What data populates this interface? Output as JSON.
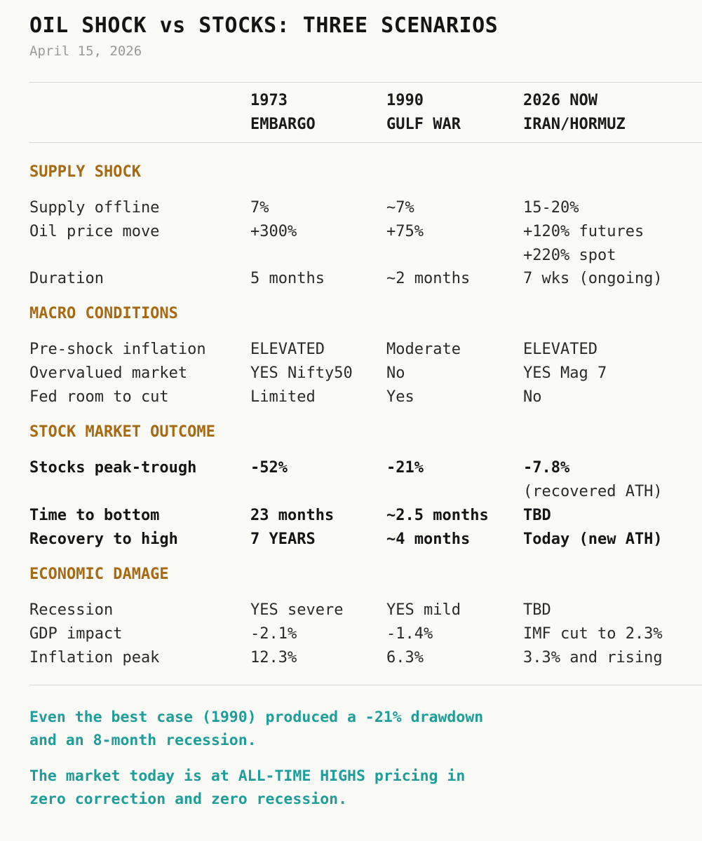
{
  "title": "OIL SHOCK vs STOCKS: THREE SCENARIOS",
  "date": "April 15, 2026",
  "columns": [
    {
      "line1": "1973",
      "line2": "EMBARGO"
    },
    {
      "line1": "1990",
      "line2": "GULF WAR"
    },
    {
      "line1": "2026 NOW",
      "line2": "IRAN/HORMUZ"
    }
  ],
  "sections": {
    "supply": {
      "heading": "SUPPLY SHOCK",
      "rows": [
        {
          "label": "Supply offline",
          "v1": "7%",
          "v2": "~7%",
          "v3": "15-20%"
        },
        {
          "label": "Oil price move",
          "v1": "+300%",
          "v2": "+75%",
          "v3": "+120% futures",
          "v3b": "+220% spot"
        },
        {
          "label": "Duration",
          "v1": "5 months",
          "v2": "~2 months",
          "v3": "7 wks (ongoing)"
        }
      ]
    },
    "macro": {
      "heading": "MACRO CONDITIONS",
      "rows": [
        {
          "label": "Pre-shock inflation",
          "v1": "ELEVATED",
          "v2": "Moderate",
          "v3": "ELEVATED"
        },
        {
          "label": "Overvalued market",
          "v1": "YES Nifty50",
          "v2": "No",
          "v3": "YES Mag 7"
        },
        {
          "label": "Fed room to cut",
          "v1": "Limited",
          "v2": "Yes",
          "v3": "No"
        }
      ]
    },
    "stock": {
      "heading": "STOCK MARKET OUTCOME",
      "rows": [
        {
          "label": "Stocks peak-trough",
          "v1": "-52%",
          "v2": "-21%",
          "v3": "-7.8%",
          "v3b": "(recovered ATH)"
        },
        {
          "label": "Time to bottom",
          "v1": "23 months",
          "v2": "~2.5 months",
          "v3": "TBD"
        },
        {
          "label": "Recovery to high",
          "v1": "7 YEARS",
          "v2": "~4 months",
          "v3": "Today (new ATH)"
        }
      ]
    },
    "econ": {
      "heading": "ECONOMIC DAMAGE",
      "rows": [
        {
          "label": "Recession",
          "v1": "YES severe",
          "v2": "YES mild",
          "v3": "TBD"
        },
        {
          "label": "GDP impact",
          "v1": "-2.1%",
          "v2": "-1.4%",
          "v3": "IMF cut to 2.3%"
        },
        {
          "label": "Inflation peak",
          "v1": "12.3%",
          "v2": "6.3%",
          "v3": "3.3% and rising"
        }
      ]
    }
  },
  "notes": [
    {
      "line1": "Even the best case (1990) produced a -21% drawdown",
      "line2": "and an 8-month recession."
    },
    {
      "line1": "The market today is at ALL-TIME HIGHS pricing in",
      "line2": "zero correction and zero recession."
    }
  ],
  "colors": {
    "section_heading": "#a76a12",
    "note": "#1d9e9a",
    "rule": "#d6d6d2"
  }
}
